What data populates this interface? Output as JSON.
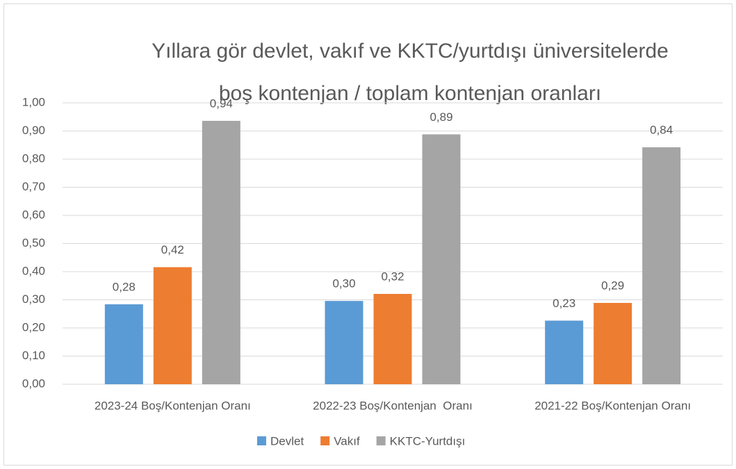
{
  "chart_data": {
    "type": "bar",
    "title": [
      "Yıllara gör devlet, vakıf ve KKTC/yurtdışı üniversitelerde",
      "boş kontenjan / toplam kontenjan oranları"
    ],
    "categories": [
      "2023-24 Boş/Kontenjan Oranı",
      "2022-23 Boş/Kontenjan  Oranı",
      "2021-22 Boş/Kontenjan Oranı"
    ],
    "series": [
      {
        "name": "Devlet",
        "color": "#5b9bd5",
        "values": [
          0.284,
          0.296,
          0.226
        ],
        "value_labels": [
          "0,28",
          "0,30",
          "0,23"
        ]
      },
      {
        "name": "Vakıf",
        "color": "#ed7d31",
        "values": [
          0.416,
          0.321,
          0.289
        ],
        "value_labels": [
          "0,42",
          "0,32",
          "0,29"
        ]
      },
      {
        "name": "KKTC-Yurtdışı",
        "color": "#a5a5a5",
        "values": [
          0.936,
          0.888,
          0.842
        ],
        "value_labels": [
          "0,94",
          "0,89",
          "0,84"
        ]
      }
    ],
    "ylim": [
      0,
      1
    ],
    "yticks": [
      {
        "value": 0,
        "label": "0,00"
      },
      {
        "value": 0.1,
        "label": "0,10"
      },
      {
        "value": 0.2,
        "label": "0,20"
      },
      {
        "value": 0.3,
        "label": "0,30"
      },
      {
        "value": 0.4,
        "label": "0,40"
      },
      {
        "value": 0.5,
        "label": "0,50"
      },
      {
        "value": 0.6,
        "label": "0,60"
      },
      {
        "value": 0.7,
        "label": "0,70"
      },
      {
        "value": 0.8,
        "label": "0,80"
      },
      {
        "value": 0.9,
        "label": "0,90"
      },
      {
        "value": 1,
        "label": "1,00"
      }
    ],
    "grid": true,
    "legend": "bottom"
  }
}
